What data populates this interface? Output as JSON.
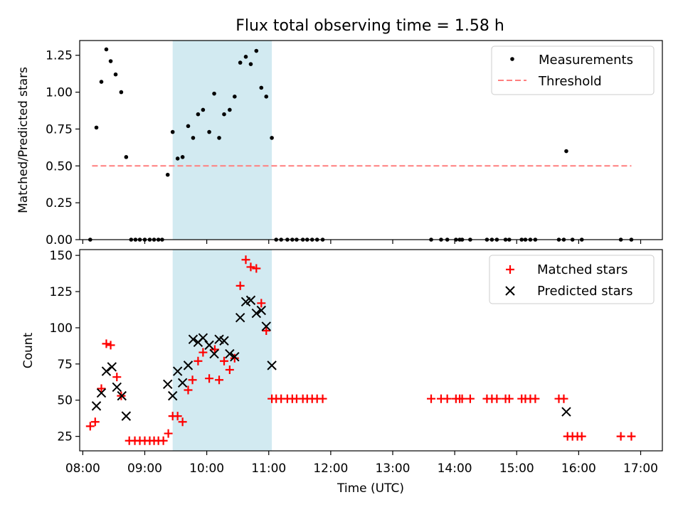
{
  "chart_data": {
    "type": "scatter",
    "title": "Flux total observing time = 1.58 h",
    "xlabel": "Time (UTC)",
    "xlim": [
      7.95,
      17.35
    ],
    "xticks": [
      8,
      9,
      10,
      11,
      12,
      13,
      14,
      15,
      16,
      17
    ],
    "xtick_labels": [
      "08:00",
      "09:00",
      "10:00",
      "11:00",
      "12:00",
      "13:00",
      "14:00",
      "15:00",
      "16:00",
      "17:00"
    ],
    "observing_span": {
      "start": 9.45,
      "end": 11.05,
      "color": "#add8e6"
    },
    "colors": {
      "measurements": "#000000",
      "threshold": "#ff7f7f",
      "matched": "#ff0000",
      "predicted": "#000000",
      "span": "#add8e6"
    },
    "top": {
      "ylabel": "Matched/Predicted stars",
      "ylim": [
        0,
        1.35
      ],
      "yticks": [
        0.0,
        0.25,
        0.5,
        0.75,
        1.0,
        1.25
      ],
      "ytick_labels": [
        "0.00",
        "0.25",
        "0.50",
        "0.75",
        "1.00",
        "1.25"
      ],
      "legend": [
        "Measurements",
        "Threshold"
      ],
      "threshold": {
        "value": 0.5,
        "x_start": 8.15,
        "x_end": 16.85
      },
      "measurements": [
        [
          8.12,
          0.0
        ],
        [
          8.22,
          0.76
        ],
        [
          8.3,
          1.07
        ],
        [
          8.38,
          1.29
        ],
        [
          8.45,
          1.21
        ],
        [
          8.53,
          1.12
        ],
        [
          8.62,
          1.0
        ],
        [
          8.7,
          0.56
        ],
        [
          8.78,
          0.0
        ],
        [
          8.85,
          0.0
        ],
        [
          8.92,
          0.0
        ],
        [
          9.0,
          0.0
        ],
        [
          9.08,
          0.0
        ],
        [
          9.15,
          0.0
        ],
        [
          9.22,
          0.0
        ],
        [
          9.28,
          0.0
        ],
        [
          9.37,
          0.44
        ],
        [
          9.45,
          0.73
        ],
        [
          9.53,
          0.55
        ],
        [
          9.61,
          0.56
        ],
        [
          9.7,
          0.77
        ],
        [
          9.78,
          0.69
        ],
        [
          9.86,
          0.85
        ],
        [
          9.94,
          0.88
        ],
        [
          10.04,
          0.73
        ],
        [
          10.12,
          0.99
        ],
        [
          10.2,
          0.69
        ],
        [
          10.28,
          0.85
        ],
        [
          10.37,
          0.88
        ],
        [
          10.45,
          0.97
        ],
        [
          10.54,
          1.2
        ],
        [
          10.63,
          1.24
        ],
        [
          10.71,
          1.19
        ],
        [
          10.8,
          1.28
        ],
        [
          10.88,
          1.03
        ],
        [
          10.96,
          0.97
        ],
        [
          11.05,
          0.69
        ],
        [
          11.12,
          0.0
        ],
        [
          11.2,
          0.0
        ],
        [
          11.3,
          0.0
        ],
        [
          11.38,
          0.0
        ],
        [
          11.45,
          0.0
        ],
        [
          11.55,
          0.0
        ],
        [
          11.62,
          0.0
        ],
        [
          11.7,
          0.0
        ],
        [
          11.78,
          0.0
        ],
        [
          11.87,
          0.0
        ],
        [
          13.62,
          0.0
        ],
        [
          13.78,
          0.0
        ],
        [
          13.88,
          0.0
        ],
        [
          14.02,
          0.0
        ],
        [
          14.08,
          0.0
        ],
        [
          14.12,
          0.0
        ],
        [
          14.25,
          0.0
        ],
        [
          14.52,
          0.0
        ],
        [
          14.6,
          0.0
        ],
        [
          14.68,
          0.0
        ],
        [
          14.82,
          0.0
        ],
        [
          14.88,
          0.0
        ],
        [
          15.08,
          0.0
        ],
        [
          15.14,
          0.0
        ],
        [
          15.22,
          0.0
        ],
        [
          15.3,
          0.0
        ],
        [
          15.68,
          0.0
        ],
        [
          15.76,
          0.0
        ],
        [
          15.8,
          0.6
        ],
        [
          15.9,
          0.0
        ],
        [
          16.05,
          0.0
        ],
        [
          16.68,
          0.0
        ],
        [
          16.85,
          0.0
        ]
      ]
    },
    "bottom": {
      "ylabel": "Count",
      "ylim": [
        15,
        154
      ],
      "yticks": [
        25,
        50,
        75,
        100,
        125,
        150
      ],
      "ytick_labels": [
        "25",
        "50",
        "75",
        "100",
        "125",
        "150"
      ],
      "legend": [
        "Matched stars",
        "Predicted stars"
      ],
      "matched": [
        [
          8.12,
          32
        ],
        [
          8.2,
          35
        ],
        [
          8.3,
          58
        ],
        [
          8.38,
          89
        ],
        [
          8.45,
          88
        ],
        [
          8.55,
          66
        ],
        [
          8.62,
          53
        ],
        [
          8.75,
          22
        ],
        [
          8.84,
          22
        ],
        [
          8.92,
          22
        ],
        [
          9.0,
          22
        ],
        [
          9.08,
          22
        ],
        [
          9.15,
          22
        ],
        [
          9.22,
          22
        ],
        [
          9.3,
          22
        ],
        [
          9.38,
          27
        ],
        [
          9.45,
          39
        ],
        [
          9.53,
          39
        ],
        [
          9.61,
          35
        ],
        [
          9.7,
          57
        ],
        [
          9.77,
          64
        ],
        [
          9.86,
          77
        ],
        [
          9.94,
          83
        ],
        [
          10.04,
          65
        ],
        [
          10.13,
          85
        ],
        [
          10.2,
          64
        ],
        [
          10.28,
          77
        ],
        [
          10.37,
          71
        ],
        [
          10.45,
          79
        ],
        [
          10.54,
          129
        ],
        [
          10.63,
          147
        ],
        [
          10.71,
          142
        ],
        [
          10.8,
          141
        ],
        [
          10.88,
          117
        ],
        [
          10.96,
          98
        ],
        [
          11.05,
          51
        ],
        [
          11.12,
          51
        ],
        [
          11.2,
          51
        ],
        [
          11.3,
          51
        ],
        [
          11.38,
          51
        ],
        [
          11.45,
          51
        ],
        [
          11.55,
          51
        ],
        [
          11.62,
          51
        ],
        [
          11.7,
          51
        ],
        [
          11.78,
          51
        ],
        [
          11.87,
          51
        ],
        [
          13.62,
          51
        ],
        [
          13.78,
          51
        ],
        [
          13.88,
          51
        ],
        [
          14.02,
          51
        ],
        [
          14.08,
          51
        ],
        [
          14.12,
          51
        ],
        [
          14.25,
          51
        ],
        [
          14.52,
          51
        ],
        [
          14.6,
          51
        ],
        [
          14.68,
          51
        ],
        [
          14.82,
          51
        ],
        [
          14.88,
          51
        ],
        [
          15.08,
          51
        ],
        [
          15.14,
          51
        ],
        [
          15.22,
          51
        ],
        [
          15.3,
          51
        ],
        [
          15.68,
          51
        ],
        [
          15.76,
          51
        ],
        [
          15.82,
          25
        ],
        [
          15.9,
          25
        ],
        [
          15.98,
          25
        ],
        [
          16.05,
          25
        ],
        [
          16.68,
          25
        ],
        [
          16.85,
          25
        ]
      ],
      "predicted": [
        [
          8.22,
          46
        ],
        [
          8.3,
          55
        ],
        [
          8.38,
          70
        ],
        [
          8.47,
          73
        ],
        [
          8.55,
          59
        ],
        [
          8.63,
          53
        ],
        [
          8.7,
          39
        ],
        [
          9.37,
          61
        ],
        [
          9.45,
          53
        ],
        [
          9.53,
          70
        ],
        [
          9.61,
          62
        ],
        [
          9.7,
          74
        ],
        [
          9.78,
          92
        ],
        [
          9.86,
          90
        ],
        [
          9.94,
          93
        ],
        [
          10.04,
          88
        ],
        [
          10.12,
          82
        ],
        [
          10.2,
          92
        ],
        [
          10.28,
          91
        ],
        [
          10.37,
          82
        ],
        [
          10.45,
          80
        ],
        [
          10.54,
          107
        ],
        [
          10.63,
          118
        ],
        [
          10.71,
          119
        ],
        [
          10.8,
          110
        ],
        [
          10.88,
          112
        ],
        [
          10.96,
          101
        ],
        [
          11.05,
          74
        ],
        [
          15.8,
          42
        ]
      ]
    }
  }
}
